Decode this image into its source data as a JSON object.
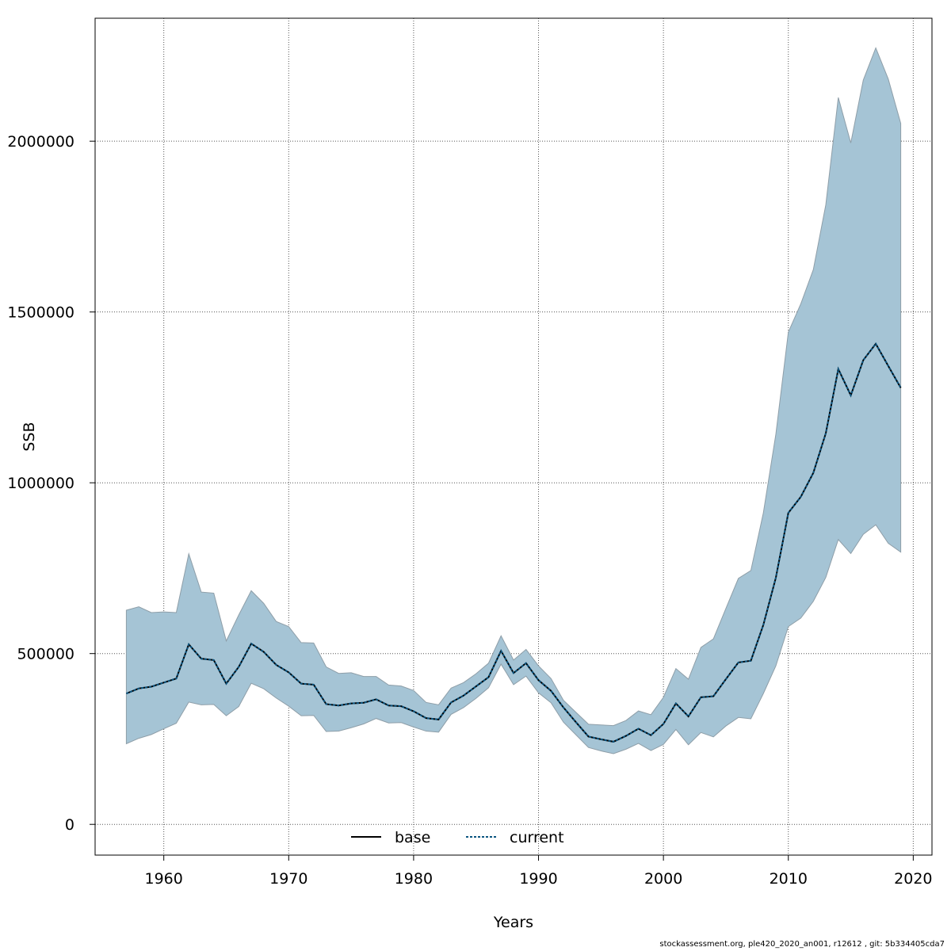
{
  "chart_data": {
    "type": "area",
    "xlabel": "Years",
    "ylabel": "SSB",
    "xlim": [
      1954.5,
      2021.5
    ],
    "ylim": [
      -90000,
      2360000
    ],
    "x_ticks": [
      1960,
      1970,
      1980,
      1990,
      2000,
      2010,
      2020
    ],
    "y_ticks": [
      0,
      500000,
      1000000,
      1500000,
      2000000
    ],
    "grid": true,
    "legend_position": "bottom-center",
    "colors": {
      "band": "#a5c4d5",
      "band_edge": "#8e9ea8",
      "base": "#000000",
      "current": "#0b5580"
    },
    "x": [
      1957,
      1958,
      1959,
      1960,
      1961,
      1962,
      1963,
      1964,
      1965,
      1966,
      1967,
      1968,
      1969,
      1970,
      1971,
      1972,
      1973,
      1974,
      1975,
      1976,
      1977,
      1978,
      1979,
      1980,
      1981,
      1982,
      1983,
      1984,
      1985,
      1986,
      1987,
      1988,
      1989,
      1990,
      1991,
      1992,
      1993,
      1994,
      1995,
      1996,
      1997,
      1998,
      1999,
      2000,
      2001,
      2002,
      2003,
      2004,
      2005,
      2006,
      2007,
      2008,
      2009,
      2010,
      2011,
      2012,
      2013,
      2014,
      2015,
      2016,
      2017,
      2018,
      2019
    ],
    "series": [
      {
        "name": "base",
        "values": [
          383000,
          398000,
          403000,
          415000,
          427000,
          527000,
          485000,
          481000,
          412000,
          461000,
          529000,
          505000,
          467000,
          445000,
          412000,
          409000,
          352000,
          348000,
          354000,
          356000,
          366000,
          348000,
          346000,
          331000,
          311000,
          307000,
          357000,
          377000,
          404000,
          431000,
          508000,
          443000,
          472000,
          422000,
          391000,
          342000,
          299000,
          257000,
          249000,
          242000,
          259000,
          280000,
          261000,
          294000,
          354000,
          316000,
          372000,
          375000,
          425000,
          474000,
          479000,
          584000,
          722000,
          912000,
          959000,
          1029000,
          1145000,
          1333000,
          1256000,
          1359000,
          1407000,
          1342000,
          1278000
        ]
      },
      {
        "name": "current",
        "values": [
          383000,
          398000,
          403000,
          415000,
          427000,
          527000,
          485000,
          481000,
          412000,
          461000,
          529000,
          505000,
          467000,
          445000,
          412000,
          409000,
          352000,
          348000,
          354000,
          356000,
          366000,
          348000,
          346000,
          331000,
          311000,
          307000,
          357000,
          377000,
          404000,
          431000,
          508000,
          443000,
          472000,
          422000,
          391000,
          342000,
          299000,
          257000,
          249000,
          242000,
          259000,
          280000,
          261000,
          294000,
          354000,
          316000,
          372000,
          375000,
          425000,
          474000,
          479000,
          584000,
          722000,
          912000,
          959000,
          1029000,
          1145000,
          1333000,
          1256000,
          1359000,
          1407000,
          1342000,
          1278000
        ]
      }
    ],
    "band_upper": [
      627000,
      637000,
      620000,
      622000,
      620000,
      792000,
      680000,
      677000,
      537000,
      613000,
      684000,
      647000,
      594000,
      579000,
      532000,
      531000,
      461000,
      442000,
      444000,
      433000,
      433000,
      408000,
      405000,
      392000,
      357000,
      350000,
      399000,
      415000,
      441000,
      472000,
      552000,
      481000,
      512000,
      464000,
      427000,
      363000,
      328000,
      293000,
      291000,
      289000,
      304000,
      332000,
      321000,
      372000,
      456000,
      425000,
      518000,
      543000,
      632000,
      720000,
      743000,
      912000,
      1142000,
      1441000,
      1524000,
      1624000,
      1814000,
      2128000,
      1995000,
      2179000,
      2273000,
      2182000,
      2052000
    ],
    "band_lower": [
      236000,
      252000,
      263000,
      280000,
      296000,
      358000,
      350000,
      351000,
      318000,
      345000,
      413000,
      397000,
      370000,
      346000,
      318000,
      319000,
      272000,
      273000,
      283000,
      294000,
      310000,
      297000,
      298000,
      285000,
      273000,
      270000,
      322000,
      342000,
      369000,
      400000,
      469000,
      409000,
      434000,
      385000,
      356000,
      299000,
      262000,
      225000,
      215000,
      207000,
      220000,
      237000,
      216000,
      234000,
      278000,
      233000,
      269000,
      256000,
      288000,
      313000,
      309000,
      383000,
      464000,
      579000,
      604000,
      653000,
      723000,
      834000,
      793000,
      849000,
      877000,
      823000,
      797000
    ]
  },
  "legend": {
    "base_label": "base",
    "current_label": "current"
  },
  "footer": "stockassessment.org, ple420_2020_an001, r12612 , git: 5b334405cda7"
}
